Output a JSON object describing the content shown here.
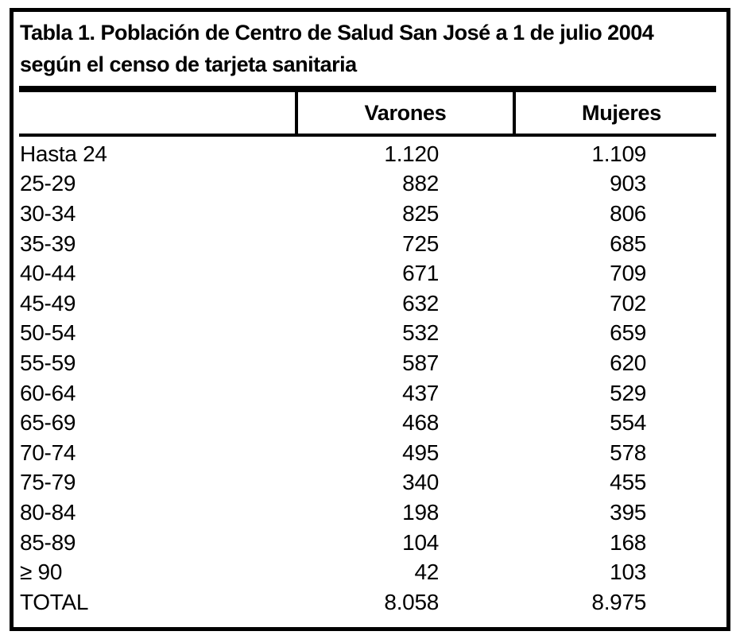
{
  "table": {
    "title_lines": [
      "Tabla 1. Población de Centro de Salud San José a 1 de julio 2004",
      "según el censo de tarjeta sanitaria"
    ],
    "columns": [
      "",
      "Varones",
      "Mujeres"
    ],
    "rows": [
      {
        "label": "Hasta 24",
        "varones": "1.120",
        "mujeres": "1.109"
      },
      {
        "label": "25-29",
        "varones": "882",
        "mujeres": "903"
      },
      {
        "label": "30-34",
        "varones": "825",
        "mujeres": "806"
      },
      {
        "label": "35-39",
        "varones": "725",
        "mujeres": "685"
      },
      {
        "label": "40-44",
        "varones": "671",
        "mujeres": "709"
      },
      {
        "label": "45-49",
        "varones": "632",
        "mujeres": "702"
      },
      {
        "label": "50-54",
        "varones": "532",
        "mujeres": "659"
      },
      {
        "label": "55-59",
        "varones": "587",
        "mujeres": "620"
      },
      {
        "label": "60-64",
        "varones": "437",
        "mujeres": "529"
      },
      {
        "label": "65-69",
        "varones": "468",
        "mujeres": "554"
      },
      {
        "label": "70-74",
        "varones": "495",
        "mujeres": "578"
      },
      {
        "label": "75-79",
        "varones": "340",
        "mujeres": "455"
      },
      {
        "label": "80-84",
        "varones": "198",
        "mujeres": "395"
      },
      {
        "label": "85-89",
        "varones": "104",
        "mujeres": "168"
      },
      {
        "label": "≥ 90",
        "varones": "42",
        "mujeres": "103"
      },
      {
        "label": "TOTAL",
        "varones": "8.058",
        "mujeres": "8.975"
      }
    ]
  },
  "colors": {
    "text": "#000000",
    "rules": "#000000",
    "background": "#ffffff"
  }
}
